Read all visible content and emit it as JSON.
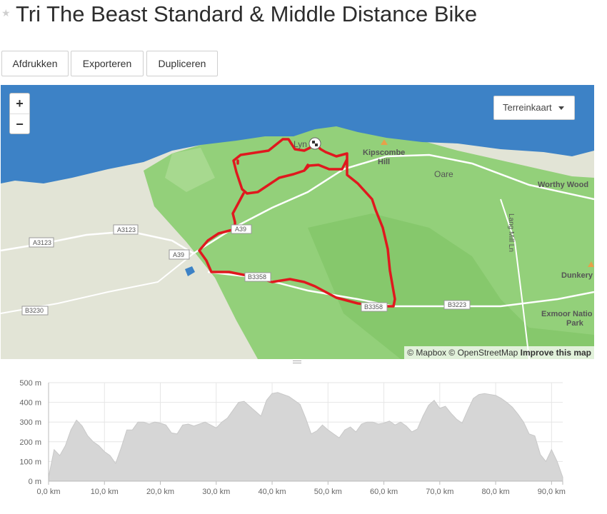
{
  "page": {
    "title": "Tri The Beast Standard & Middle Distance Bike"
  },
  "toolbar": {
    "print_label": "Afdrukken",
    "export_label": "Exporteren",
    "duplicate_label": "Dupliceren"
  },
  "map": {
    "zoom_in": "+",
    "zoom_out": "−",
    "layer_select": "Terreinkaart",
    "attribution": {
      "mapbox": "© Mapbox",
      "osm": "© OpenStreetMap",
      "improve": "Improve this map"
    },
    "labels": {
      "lynton": "Lyn",
      "kipscombe": "Kipscombe",
      "hill": "Hill",
      "oare": "Oare",
      "worthy_wood": "Worthy Wood",
      "lane": "Lang Mill Ln",
      "dunkery": "Dunkery",
      "exmoor1": "Exmoor Natio",
      "exmoor2": "Park"
    },
    "roads": {
      "a3123_1": "A3123",
      "a3123_2": "A3123",
      "a39_1": "A39",
      "a39_2": "A39",
      "b3358_1": "B3358",
      "b3358_2": "B3358",
      "b3223": "B3223",
      "b3230": "B3230"
    },
    "colors": {
      "route": "#e0181e",
      "sea": "#3d82c6",
      "land": "#dfe3d3",
      "park": "#8fcf73"
    }
  },
  "chart_data": {
    "type": "area",
    "xlabel": "",
    "ylabel": "",
    "xlim": [
      0,
      92
    ],
    "ylim": [
      0,
      500
    ],
    "x_unit": "km",
    "y_unit": "m",
    "x_ticks": [
      "0,0 km",
      "10,0 km",
      "20,0 km",
      "30,0 km",
      "40,0 km",
      "50,0 km",
      "60,0 km",
      "70,0 km",
      "80,0 km",
      "90,0 km"
    ],
    "y_ticks": [
      "500 m",
      "400 m",
      "300 m",
      "200 m",
      "100 m",
      "0 m"
    ],
    "series": [
      {
        "fill": "#d6d6d6",
        "x": [
          0,
          1,
          2,
          3,
          4,
          5,
          6,
          7,
          8,
          9,
          10,
          11,
          12,
          13,
          14,
          15,
          16,
          17,
          18,
          19,
          20,
          21,
          22,
          23,
          24,
          25,
          26,
          27,
          28,
          29,
          30,
          31,
          32,
          33,
          34,
          35,
          36,
          37,
          38,
          39,
          40,
          41,
          42,
          43,
          44,
          45,
          46,
          47,
          48,
          49,
          50,
          51,
          52,
          53,
          54,
          55,
          56,
          57,
          58,
          59,
          60,
          61,
          62,
          63,
          64,
          65,
          66,
          67,
          68,
          69,
          70,
          71,
          72,
          73,
          74,
          75,
          76,
          77,
          78,
          79,
          80,
          81,
          82,
          83,
          84,
          85,
          86,
          87,
          88,
          89,
          90,
          91,
          92
        ],
        "values": [
          20,
          160,
          130,
          180,
          260,
          310,
          280,
          230,
          200,
          180,
          150,
          130,
          90,
          170,
          260,
          260,
          300,
          300,
          290,
          300,
          295,
          285,
          245,
          240,
          285,
          290,
          280,
          290,
          300,
          285,
          270,
          300,
          320,
          360,
          400,
          405,
          380,
          355,
          330,
          410,
          445,
          450,
          440,
          430,
          410,
          390,
          320,
          240,
          255,
          285,
          260,
          240,
          220,
          260,
          275,
          250,
          290,
          300,
          300,
          290,
          295,
          305,
          285,
          300,
          280,
          250,
          265,
          330,
          385,
          410,
          370,
          380,
          345,
          315,
          295,
          360,
          420,
          440,
          445,
          440,
          435,
          420,
          400,
          375,
          340,
          300,
          240,
          230,
          135,
          100,
          160,
          100,
          20
        ]
      }
    ]
  }
}
